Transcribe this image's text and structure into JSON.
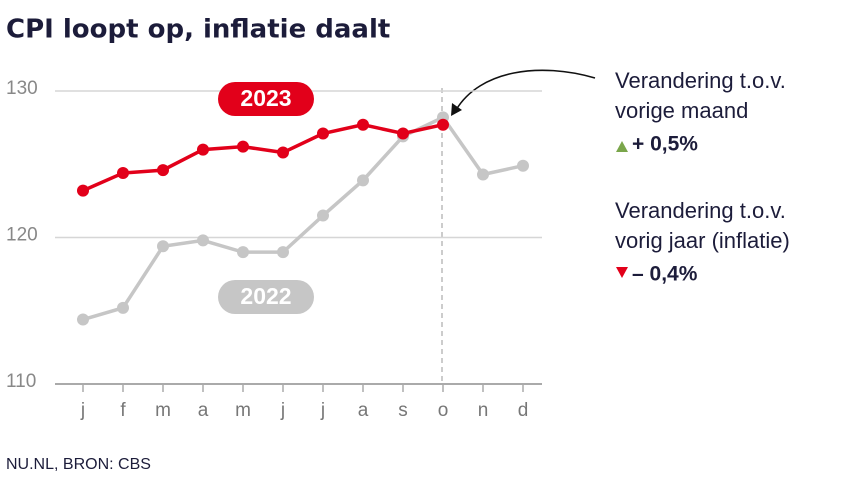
{
  "chart_data": {
    "type": "line",
    "title": "CPI loopt op, inflatie daalt",
    "categories": [
      "j",
      "f",
      "m",
      "a",
      "m",
      "j",
      "j",
      "a",
      "s",
      "o",
      "n",
      "d"
    ],
    "series": [
      {
        "name": "2023",
        "color": "#e2001a",
        "values": [
          123.2,
          124.4,
          124.6,
          126.0,
          126.2,
          125.8,
          127.1,
          127.7,
          127.1,
          127.7,
          null,
          null
        ]
      },
      {
        "name": "2022",
        "color": "#c6c6c6",
        "values": [
          114.4,
          115.2,
          119.4,
          119.8,
          119.0,
          119.0,
          121.5,
          123.9,
          126.9,
          128.2,
          124.3,
          124.9
        ]
      }
    ],
    "ylim": [
      110,
      130
    ],
    "yticks": [
      110,
      120,
      130
    ],
    "grid": true,
    "annotations": [
      {
        "lines": [
          "Verandering t.o.v.",
          "vorige maand"
        ],
        "value": "+ 0,5%"
      },
      {
        "lines": [
          "Verandering t.o.v.",
          "vorig jaar (inflatie)"
        ],
        "value": "– 0,4%"
      }
    ],
    "source": "NU.NL, BRON: CBS"
  }
}
